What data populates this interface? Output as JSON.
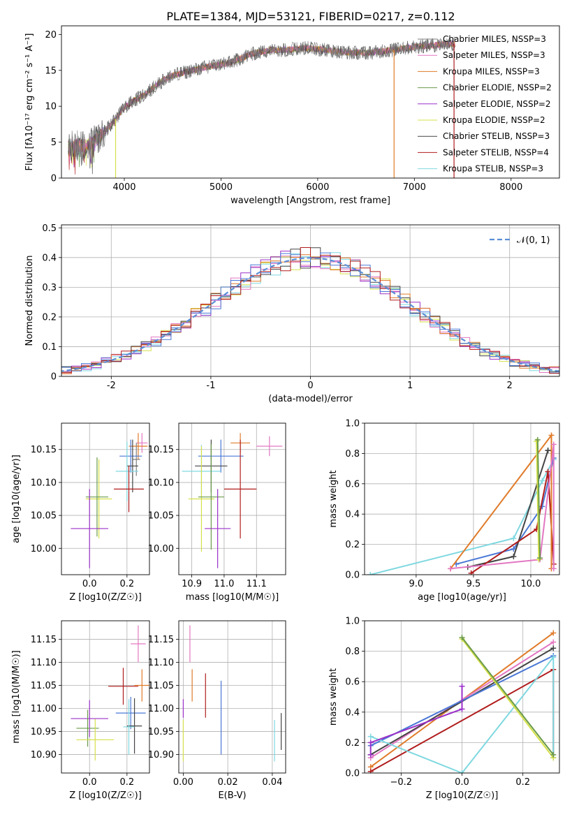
{
  "title": "PLATE=1384, MJD=53121, FIBERID=0217, z=0.112",
  "colors": {
    "chabrier_miles": "#7f7f7f",
    "salpeter_miles": "#e377c2",
    "kroupa_miles": "#e07b2a",
    "chabrier_elodie": "#6a9a4a",
    "salpeter_elodie": "#9b30c8",
    "kroupa_elodie": "#d6e04a",
    "chabrier_stelib": "#444444",
    "salpeter_stelib": "#b01c1c",
    "kroupa_stelib": "#7fd8e0",
    "gaussian": "#5b8fd6",
    "blue_series": "#4a78d6"
  },
  "chart_data": [
    {
      "id": "spectrum",
      "type": "line",
      "title": "PLATE=1384, MJD=53121, FIBERID=0217, z=0.112",
      "xlabel": "wavelength [Angstrom, rest frame]",
      "ylabel": "Flux [fλ10⁻¹⁷ erg cm⁻² s⁻¹ A⁻¹]",
      "xlim": [
        3350,
        8500
      ],
      "ylim": [
        0,
        21.2
      ],
      "xticks": [
        4000,
        5000,
        6000,
        7000,
        8000
      ],
      "yticks": [
        0,
        5,
        10,
        15,
        20
      ],
      "legend": [
        "Chabrier MILES, NSSP=3",
        "Salpeter MILES, NSSP=3",
        "Kroupa MILES, NSSP=3",
        "Chabrier ELODIE, NSSP=2",
        "Salpeter ELODIE, NSSP=2",
        "Kroupa ELODIE, NSSP=2",
        "Chabrier STELIB, NSSP=3",
        "Salpeter STELIB, NSSP=4",
        "Kroupa STELIB, NSSP=3"
      ],
      "legend_position": "right",
      "continuum": {
        "x": [
          3420,
          3500,
          3600,
          3700,
          3800,
          3900,
          4000,
          4100,
          4200,
          4300,
          4400,
          4500,
          4700,
          4900,
          5100,
          5300,
          5500,
          5700,
          5900,
          6100,
          6300,
          6500,
          6700,
          6900,
          7100,
          7300,
          7400
        ],
        "y": [
          4.5,
          4.6,
          4.5,
          5.2,
          6.5,
          8.0,
          9.8,
          10.8,
          11.5,
          12.6,
          13.6,
          14.3,
          15.0,
          15.6,
          16.1,
          17.2,
          17.8,
          17.9,
          18.1,
          17.8,
          17.5,
          17.4,
          17.7,
          18.1,
          18.4,
          18.6,
          18.7
        ]
      },
      "dropouts": [
        {
          "x": 3910,
          "y": 0,
          "series": "kroupa_elodie"
        },
        {
          "x": 6790,
          "y": 0,
          "series": "kroupa_miles"
        },
        {
          "x": 7410,
          "y": 0,
          "series": "salpeter_stelib"
        }
      ]
    },
    {
      "id": "residuals",
      "type": "step",
      "xlabel": "(data-model)/error",
      "ylabel": "Normed distribution",
      "xlim": [
        -2.5,
        2.5
      ],
      "ylim": [
        0,
        0.51
      ],
      "xticks": [
        -2,
        -1,
        0,
        1,
        2
      ],
      "yticks": [
        0.0,
        0.1,
        0.2,
        0.3,
        0.4,
        0.5
      ],
      "legend": "𝒩(0, 1)",
      "legend_position": "top-right",
      "bin_width": 0.1,
      "grid": true
    },
    {
      "id": "age_vs_Z",
      "type": "errorbar",
      "xlabel": "Z [log10(Z/Z☉)]",
      "ylabel": "age  [log10(age/yr)]",
      "xlim": [
        -0.15,
        0.32
      ],
      "ylim": [
        9.96,
        10.19
      ],
      "xticks": [
        0.0,
        0.2
      ],
      "xticklabels": [
        "0.0",
        "0.2"
      ],
      "yticks": [
        10.0,
        10.05,
        10.1,
        10.15
      ],
      "yticklabels": [
        "10.00",
        "10.05",
        "10.10",
        "10.15"
      ],
      "points": [
        {
          "series": "salpeter_miles",
          "x": 0.28,
          "xe": 0.03,
          "y": 10.16,
          "ye": 0.015
        },
        {
          "series": "kroupa_miles",
          "x": 0.26,
          "xe": 0.05,
          "y": 10.155,
          "ye": 0.02
        },
        {
          "series": "chabrier_miles",
          "x": 0.25,
          "xe": 0.02,
          "y": 10.135,
          "ye": 0.025
        },
        {
          "series": "blue",
          "x": 0.22,
          "xe": 0.06,
          "y": 10.14,
          "ye": 0.025
        },
        {
          "series": "chabrier_stelib",
          "x": 0.23,
          "xe": 0.03,
          "y": 10.125,
          "ye": 0.04
        },
        {
          "series": "kroupa_stelib",
          "x": 0.2,
          "xe": 0.06,
          "y": 10.117,
          "ye": 0.045
        },
        {
          "series": "salpeter_stelib",
          "x": 0.21,
          "xe": 0.08,
          "y": 10.09,
          "ye": 0.035
        },
        {
          "series": "kroupa_elodie",
          "x": 0.05,
          "xe": 0.07,
          "y": 10.075,
          "ye": 0.06
        },
        {
          "series": "chabrier_elodie",
          "x": 0.04,
          "xe": 0.06,
          "y": 10.078,
          "ye": 0.06
        },
        {
          "series": "salpeter_elodie",
          "x": 0.0,
          "xe": 0.1,
          "y": 10.03,
          "ye": 0.06
        }
      ]
    },
    {
      "id": "age_vs_mass",
      "type": "errorbar",
      "xlabel": "mass [log10(M/M☉)]",
      "xlim": [
        10.86,
        11.19
      ],
      "ylim": [
        9.96,
        10.19
      ],
      "xticks": [
        10.9,
        11.0,
        11.1
      ],
      "xticklabels": [
        "10.9",
        "11.0",
        "11.1"
      ],
      "yticks": [
        10.0,
        10.05,
        10.1,
        10.15
      ],
      "yticklabels": [
        "10.00",
        "10.05",
        "10.10",
        "10.15"
      ],
      "points": [
        {
          "series": "salpeter_miles",
          "x": 11.14,
          "xe": 0.04,
          "y": 10.155,
          "ye": 0.015
        },
        {
          "series": "kroupa_miles",
          "x": 11.05,
          "xe": 0.03,
          "y": 10.16,
          "ye": 0.015
        },
        {
          "series": "blue",
          "x": 10.99,
          "xe": 0.07,
          "y": 10.14,
          "ye": 0.025
        },
        {
          "series": "chabrier_stelib",
          "x": 10.96,
          "xe": 0.05,
          "y": 10.125,
          "ye": 0.04
        },
        {
          "series": "kroupa_stelib",
          "x": 10.93,
          "xe": 0.06,
          "y": 10.117,
          "ye": 0.04
        },
        {
          "series": "salpeter_stelib",
          "x": 11.05,
          "xe": 0.05,
          "y": 10.09,
          "ye": 0.075
        },
        {
          "series": "kroupa_elodie",
          "x": 10.93,
          "xe": 0.04,
          "y": 10.075,
          "ye": 0.08
        },
        {
          "series": "chabrier_elodie",
          "x": 10.96,
          "xe": 0.04,
          "y": 10.078,
          "ye": 0.08
        },
        {
          "series": "salpeter_elodie",
          "x": 10.98,
          "xe": 0.04,
          "y": 10.03,
          "ye": 0.06
        }
      ]
    },
    {
      "id": "weight_vs_age",
      "type": "line",
      "xlabel": "age  [log10(age/yr)]",
      "ylabel": "mass weight",
      "xlim": [
        8.55,
        10.25
      ],
      "ylim": [
        0,
        1
      ],
      "xticks": [
        9.0,
        9.5,
        10.0
      ],
      "xticklabels": [
        "9.0",
        "9.5",
        "10.0"
      ],
      "yticks": [
        0.0,
        0.2,
        0.4,
        0.6,
        0.8,
        1.0
      ],
      "yticklabels": [
        "0.0",
        "0.2",
        "0.4",
        "0.6",
        "0.8",
        "1.0"
      ],
      "series": [
        {
          "series": "kroupa_stelib",
          "x": [
            8.6,
            9.85,
            10.1,
            10.2
          ],
          "y": [
            0.0,
            0.24,
            0.62,
            0.76
          ]
        },
        {
          "series": "blue",
          "x": [
            9.35,
            9.85,
            10.1,
            10.2
          ],
          "y": [
            0.07,
            0.17,
            0.45,
            0.77
          ]
        },
        {
          "series": "chabrier_stelib",
          "x": [
            9.45,
            9.85,
            10.15,
            10.15
          ],
          "y": [
            0.05,
            0.12,
            0.82,
            0.82
          ]
        },
        {
          "series": "salpeter_stelib",
          "x": [
            9.48,
            10.05,
            10.15,
            10.2
          ],
          "y": [
            0.01,
            0.3,
            0.68,
            0.07
          ]
        },
        {
          "series": "kroupa_miles",
          "x": [
            9.3,
            10.18,
            10.18
          ],
          "y": [
            0.04,
            0.92,
            0.04
          ]
        },
        {
          "series": "salpeter_miles",
          "x": [
            9.3,
            10.08,
            10.2,
            10.2
          ],
          "y": [
            0.04,
            0.1,
            0.86,
            0.04
          ]
        },
        {
          "series": "kroupa_elodie",
          "x": [
            10.05,
            10.07
          ],
          "y": [
            0.88,
            0.1
          ]
        },
        {
          "series": "chabrier_elodie",
          "x": [
            10.06,
            10.08
          ],
          "y": [
            0.89,
            0.11
          ]
        }
      ]
    },
    {
      "id": "mass_vs_Z",
      "type": "errorbar",
      "xlabel": "Z [log10(Z/Z☉)]",
      "ylabel": "mass [log10(M/M☉)]",
      "xlim": [
        -0.15,
        0.32
      ],
      "ylim": [
        10.86,
        11.19
      ],
      "xticks": [
        0.0,
        0.2
      ],
      "xticklabels": [
        "0.0",
        "0.2"
      ],
      "yticks": [
        10.9,
        10.95,
        11.0,
        11.05,
        11.1,
        11.15
      ],
      "yticklabels": [
        "10.90",
        "10.95",
        "11.00",
        "11.05",
        "11.10",
        "11.15"
      ],
      "points": [
        {
          "series": "salpeter_miles",
          "x": 0.26,
          "xe": 0.04,
          "y": 11.14,
          "ye": 0.04
        },
        {
          "series": "kroupa_miles",
          "x": 0.28,
          "xe": 0.04,
          "y": 11.05,
          "ye": 0.035
        },
        {
          "series": "salpeter_stelib",
          "x": 0.18,
          "xe": 0.08,
          "y": 11.048,
          "ye": 0.04
        },
        {
          "series": "blue",
          "x": 0.22,
          "xe": 0.08,
          "y": 10.99,
          "ye": 0.035
        },
        {
          "series": "chabrier_stelib",
          "x": 0.24,
          "xe": 0.04,
          "y": 10.962,
          "ye": 0.06
        },
        {
          "series": "kroupa_stelib",
          "x": 0.21,
          "xe": 0.03,
          "y": 10.96,
          "ye": 0.06
        },
        {
          "series": "salpeter_elodie",
          "x": 0.0,
          "xe": 0.1,
          "y": 10.978,
          "ye": 0.04
        },
        {
          "series": "chabrier_elodie",
          "x": -0.01,
          "xe": 0.06,
          "y": 10.957,
          "ye": 0.04
        },
        {
          "series": "kroupa_elodie",
          "x": 0.03,
          "xe": 0.1,
          "y": 10.932,
          "ye": 0.045
        }
      ]
    },
    {
      "id": "mass_vs_ebv",
      "type": "errorbar",
      "xlabel": "E(B-V)",
      "xlim": [
        -0.002,
        0.046
      ],
      "ylim": [
        10.86,
        11.19
      ],
      "xticks": [
        0.0,
        0.02,
        0.04
      ],
      "xticklabels": [
        "0.00",
        "0.02",
        "0.04"
      ],
      "yticks": [
        10.9,
        10.95,
        11.0,
        11.05,
        11.1,
        11.15
      ],
      "yticklabels": [
        "10.90",
        "10.95",
        "11.00",
        "11.05",
        "11.10",
        "11.15"
      ],
      "points": [
        {
          "series": "salpeter_elodie",
          "x": 0.0,
          "xe": 0,
          "y": 11.0,
          "ye": 0.02
        },
        {
          "series": "kroupa_elodie",
          "x": 0.0,
          "xe": 0,
          "y": 10.93,
          "ye": 0.045
        },
        {
          "series": "salpeter_miles",
          "x": 0.003,
          "xe": 0,
          "y": 11.14,
          "ye": 0.04
        },
        {
          "series": "kroupa_miles",
          "x": 0.004,
          "xe": 0,
          "y": 11.05,
          "ye": 0.035
        },
        {
          "series": "salpeter_stelib",
          "x": 0.01,
          "xe": 0,
          "y": 11.028,
          "ye": 0.048
        },
        {
          "series": "blue",
          "x": 0.017,
          "xe": 0,
          "y": 10.98,
          "ye": 0.08
        },
        {
          "series": "kroupa_stelib",
          "x": 0.041,
          "xe": 0,
          "y": 10.93,
          "ye": 0.045
        },
        {
          "series": "chabrier_stelib",
          "x": 0.044,
          "xe": 0,
          "y": 10.95,
          "ye": 0.04
        }
      ]
    },
    {
      "id": "weight_vs_Z",
      "type": "line",
      "xlabel": "Z [log10(Z/Z☉)]",
      "ylabel": "mass weight",
      "xlim": [
        -0.32,
        0.32
      ],
      "ylim": [
        0,
        1
      ],
      "xticks": [
        -0.2,
        0.0,
        0.2
      ],
      "xticklabels": [
        "−0.2",
        "0.0",
        "0.2"
      ],
      "yticks": [
        0.0,
        0.2,
        0.4,
        0.6,
        0.8,
        1.0
      ],
      "yticklabels": [
        "0.0",
        "0.2",
        "0.4",
        "0.6",
        "0.8",
        "1.0"
      ],
      "series": [
        {
          "series": "kroupa_miles",
          "x": [
            -0.3,
            0.3
          ],
          "y": [
            0.04,
            0.92
          ]
        },
        {
          "series": "salpeter_miles",
          "x": [
            -0.3,
            0.3
          ],
          "y": [
            0.1,
            0.86
          ]
        },
        {
          "series": "chabrier_stelib",
          "x": [
            -0.3,
            0.3
          ],
          "y": [
            0.12,
            0.82
          ]
        },
        {
          "series": "blue",
          "x": [
            -0.3,
            0.3
          ],
          "y": [
            0.18,
            0.77
          ]
        },
        {
          "series": "salpeter_stelib",
          "x": [
            -0.3,
            0.3,
            0.3
          ],
          "y": [
            0.01,
            0.68,
            0.1
          ]
        },
        {
          "series": "kroupa_stelib",
          "x": [
            -0.3,
            0.0,
            0.3,
            0.3
          ],
          "y": [
            0.24,
            0.0,
            0.76,
            0.1
          ]
        },
        {
          "series": "kroupa_elodie",
          "x": [
            0.0,
            0.3
          ],
          "y": [
            0.88,
            0.1
          ]
        },
        {
          "series": "chabrier_elodie",
          "x": [
            0.0,
            0.3
          ],
          "y": [
            0.89,
            0.12
          ]
        },
        {
          "series": "salpeter_elodie",
          "x": [
            -0.3,
            -0.3,
            0.0,
            0.0
          ],
          "y": [
            0.12,
            0.2,
            0.42,
            0.57
          ]
        }
      ]
    }
  ]
}
